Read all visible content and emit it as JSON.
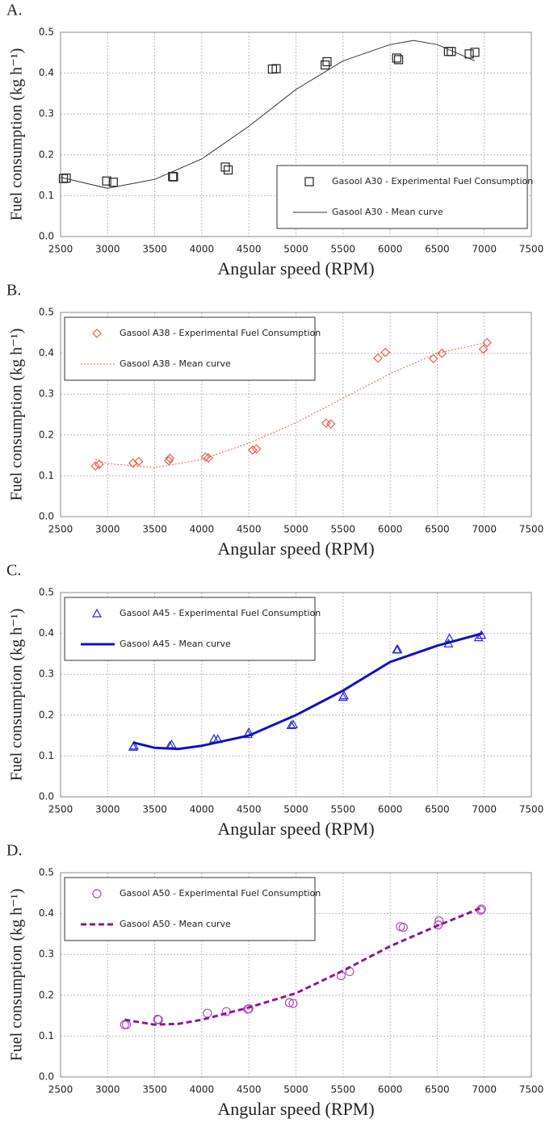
{
  "chart_data": [
    {
      "type": "scatter",
      "title": "A.",
      "x_label": "Angular speed (RPM)",
      "y_label": "Fuel consumption (kg h⁻¹)",
      "xlim": [
        2500,
        7500
      ],
      "xticks": [
        2500,
        3000,
        3500,
        4000,
        4500,
        5000,
        5500,
        6000,
        6500,
        7000,
        7500
      ],
      "ylim": [
        0,
        0.5
      ],
      "yticks": [
        {
          "value": 0,
          "label": "0.0"
        },
        0.1,
        0.2,
        0.3,
        0.4,
        0.5
      ],
      "grid": true,
      "legend": "lower right",
      "series": [
        {
          "name": "Gasool A30 - Experimental Fuel Consumption",
          "color": "#222222",
          "style": "markers",
          "marker": "square",
          "x": [
            2530,
            2560,
            2990,
            3060,
            3690,
            3700,
            4250,
            4280,
            4750,
            4790,
            5310,
            5330,
            6070,
            6090,
            6620,
            6650,
            6840,
            6900
          ],
          "values": [
            0.142,
            0.143,
            0.136,
            0.133,
            0.147,
            0.146,
            0.17,
            0.163,
            0.41,
            0.411,
            0.42,
            0.428,
            0.437,
            0.433,
            0.453,
            0.453,
            0.447,
            0.451
          ]
        },
        {
          "name": "Gasool A30 - Mean curve",
          "color": "#333333",
          "style": "line",
          "dash": "solid",
          "width": 1,
          "x": [
            2500,
            3000,
            3500,
            4000,
            4500,
            5000,
            5500,
            6000,
            6250,
            6500,
            6900
          ],
          "values": [
            0.145,
            0.118,
            0.14,
            0.19,
            0.27,
            0.36,
            0.43,
            0.47,
            0.48,
            0.47,
            0.43
          ]
        }
      ]
    },
    {
      "type": "scatter",
      "title": "B.",
      "x_label": "Angular speed (RPM)",
      "y_label": "Fuel consumption (kg h⁻¹)",
      "xlim": [
        2500,
        7500
      ],
      "xticks": [
        2500,
        3000,
        3500,
        4000,
        4500,
        5000,
        5500,
        6000,
        6500,
        7000,
        7500
      ],
      "ylim": [
        0,
        0.5
      ],
      "yticks": [
        {
          "value": 0,
          "label": "0.0"
        },
        0.1,
        0.2,
        0.3,
        0.4,
        0.5
      ],
      "grid": true,
      "legend": "upper left",
      "series": [
        {
          "name": "Gasool A38 - Experimental Fuel Consumption",
          "color": "#f05a4a",
          "style": "markers",
          "marker": "diamond",
          "x": [
            2870,
            2910,
            3270,
            3330,
            3650,
            3660,
            4040,
            4070,
            4540,
            4580,
            5320,
            5370,
            5870,
            5950,
            6460,
            6550,
            6990,
            7030
          ],
          "values": [
            0.124,
            0.128,
            0.131,
            0.135,
            0.137,
            0.143,
            0.146,
            0.144,
            0.163,
            0.166,
            0.229,
            0.227,
            0.388,
            0.402,
            0.387,
            0.4,
            0.41,
            0.426
          ]
        },
        {
          "name": "Gasool A38 - Mean curve",
          "color": "#f05a4a",
          "style": "line",
          "dash": "dotted",
          "width": 1,
          "x": [
            2870,
            3000,
            3500,
            4000,
            4500,
            5000,
            5500,
            6000,
            6500,
            7000
          ],
          "values": [
            0.14,
            0.13,
            0.12,
            0.14,
            0.18,
            0.23,
            0.29,
            0.35,
            0.4,
            0.425
          ]
        }
      ]
    },
    {
      "type": "scatter",
      "title": "C.",
      "x_label": "Angular speed (RPM)",
      "y_label": "Fuel consumption (kg h⁻¹)",
      "xlim": [
        2500,
        7500
      ],
      "xticks": [
        2500,
        3000,
        3500,
        4000,
        4500,
        5000,
        5500,
        6000,
        6500,
        7000,
        7500
      ],
      "ylim": [
        0,
        0.5
      ],
      "yticks": [
        {
          "value": 0,
          "label": "0.0"
        },
        0.1,
        0.2,
        0.3,
        0.4,
        0.5
      ],
      "grid": true,
      "legend": "upper left",
      "series": [
        {
          "name": "Gasool A45 - Experimental Fuel Consumption",
          "color": "#2a2ad8",
          "style": "markers",
          "marker": "triangle",
          "x": [
            3270,
            3280,
            3660,
            3680,
            4130,
            4170,
            4490,
            4500,
            4950,
            4970,
            5500,
            5510,
            6070,
            6080,
            6620,
            6630,
            6940,
            6970
          ],
          "values": [
            0.122,
            0.125,
            0.125,
            0.128,
            0.142,
            0.141,
            0.153,
            0.158,
            0.175,
            0.177,
            0.244,
            0.248,
            0.36,
            0.361,
            0.375,
            0.388,
            0.39,
            0.396
          ]
        },
        {
          "name": "Gasool A45 - Mean curve",
          "color": "#1010c8",
          "style": "line",
          "dash": "solid",
          "width": 3,
          "x": [
            3270,
            3500,
            3750,
            4000,
            4500,
            5000,
            5500,
            6000,
            6500,
            6980
          ],
          "values": [
            0.133,
            0.12,
            0.117,
            0.125,
            0.15,
            0.2,
            0.26,
            0.33,
            0.37,
            0.4
          ]
        }
      ]
    },
    {
      "type": "scatter",
      "title": "D.",
      "x_label": "Angular speed (RPM)",
      "y_label": "Fuel consumption (kg h⁻¹)",
      "xlim": [
        2500,
        7500
      ],
      "xticks": [
        2500,
        3000,
        3500,
        4000,
        4500,
        5000,
        5500,
        6000,
        6500,
        7000,
        7500
      ],
      "ylim": [
        0,
        0.5
      ],
      "yticks": [
        {
          "value": 0,
          "label": "0.0"
        },
        0.1,
        0.2,
        0.3,
        0.4,
        0.5
      ],
      "grid": true,
      "legend": "upper left",
      "series": [
        {
          "name": "Gasool A50 - Experimental Fuel Consumption",
          "color": "#b04cc0",
          "style": "markers",
          "marker": "circle",
          "x": [
            3180,
            3200,
            3530,
            3540,
            4060,
            4260,
            4490,
            4500,
            4930,
            4970,
            5480,
            5570,
            6110,
            6140,
            6510,
            6520,
            6960,
            6970
          ],
          "values": [
            0.128,
            0.128,
            0.141,
            0.14,
            0.156,
            0.16,
            0.166,
            0.167,
            0.182,
            0.18,
            0.248,
            0.258,
            0.368,
            0.366,
            0.372,
            0.382,
            0.408,
            0.411
          ]
        },
        {
          "name": "Gasool A50 - Mean curve",
          "color": "#8b1a8b",
          "style": "line",
          "dash": "dashed",
          "width": 3,
          "x": [
            3180,
            3500,
            3750,
            4000,
            4500,
            5000,
            5500,
            6000,
            6500,
            6980
          ],
          "values": [
            0.14,
            0.128,
            0.13,
            0.14,
            0.17,
            0.205,
            0.26,
            0.32,
            0.37,
            0.415
          ]
        }
      ]
    }
  ]
}
